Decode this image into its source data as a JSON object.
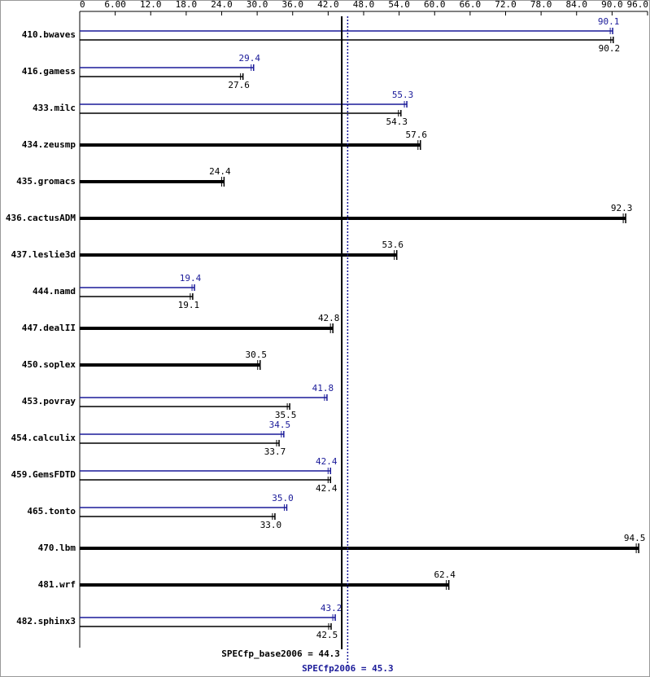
{
  "chart_data": {
    "type": "spec-bars",
    "categories": [
      "410.bwaves",
      "416.gamess",
      "433.milc",
      "434.zeusmp",
      "435.gromacs",
      "436.cactusADM",
      "437.leslie3d",
      "444.namd",
      "447.dealII",
      "450.soplex",
      "453.povray",
      "454.calculix",
      "459.GemsFDTD",
      "465.tonto",
      "470.lbm",
      "481.wrf",
      "482.sphinx3"
    ],
    "series": [
      {
        "color": "#1a1a99",
        "values": [
          90.1,
          29.4,
          55.3,
          null,
          null,
          null,
          null,
          19.4,
          null,
          null,
          41.8,
          34.5,
          42.4,
          35,
          null,
          null,
          43.2
        ],
        "value_labels": [
          "90.1",
          "29.4",
          "55.3",
          null,
          null,
          null,
          null,
          "19.4",
          null,
          null,
          "41.8",
          "34.5",
          "42.4",
          "35.0",
          null,
          null,
          "43.2"
        ]
      },
      {
        "color": "#000000",
        "values": [
          90.2,
          27.6,
          54.3,
          57.6,
          24.4,
          92.3,
          53.6,
          19.1,
          42.8,
          30.5,
          35.5,
          33.7,
          42.4,
          33,
          94.5,
          62.4,
          42.5
        ],
        "value_labels": [
          "90.2",
          "27.6",
          "54.3",
          "57.6",
          "24.4",
          "92.3",
          "53.6",
          "19.1",
          "42.8",
          "30.5",
          "35.5",
          "33.7",
          "42.4",
          "33.0",
          "94.5",
          "62.4",
          "42.5"
        ]
      }
    ],
    "xlim": [
      0,
      96
    ],
    "xticks": [
      0,
      {
        "value": 6,
        "label": "6.00"
      },
      {
        "value": 12,
        "label": "12.0"
      },
      {
        "value": 18,
        "label": "18.0"
      },
      {
        "value": 24,
        "label": "24.0"
      },
      {
        "value": 30,
        "label": "30.0"
      },
      {
        "value": 36,
        "label": "36.0"
      },
      {
        "value": 42,
        "label": "42.0"
      },
      {
        "value": 48,
        "label": "48.0"
      },
      {
        "value": 54,
        "label": "54.0"
      },
      {
        "value": 60,
        "label": "60.0"
      },
      {
        "value": 66,
        "label": "66.0"
      },
      {
        "value": 72,
        "label": "72.0"
      },
      {
        "value": 78,
        "label": "78.0"
      },
      {
        "value": 84,
        "label": "84.0"
      },
      {
        "value": 90,
        "label": "90.0"
      },
      {
        "value": 96,
        "label": "96.0"
      }
    ],
    "means": [
      {
        "label": "SPECfp_base2006 = 44.3",
        "value": 44.3,
        "color": "#000000"
      },
      {
        "label": "SPECfp2006 = 45.3",
        "value": 45.3,
        "color": "#1a1a99"
      }
    ]
  }
}
